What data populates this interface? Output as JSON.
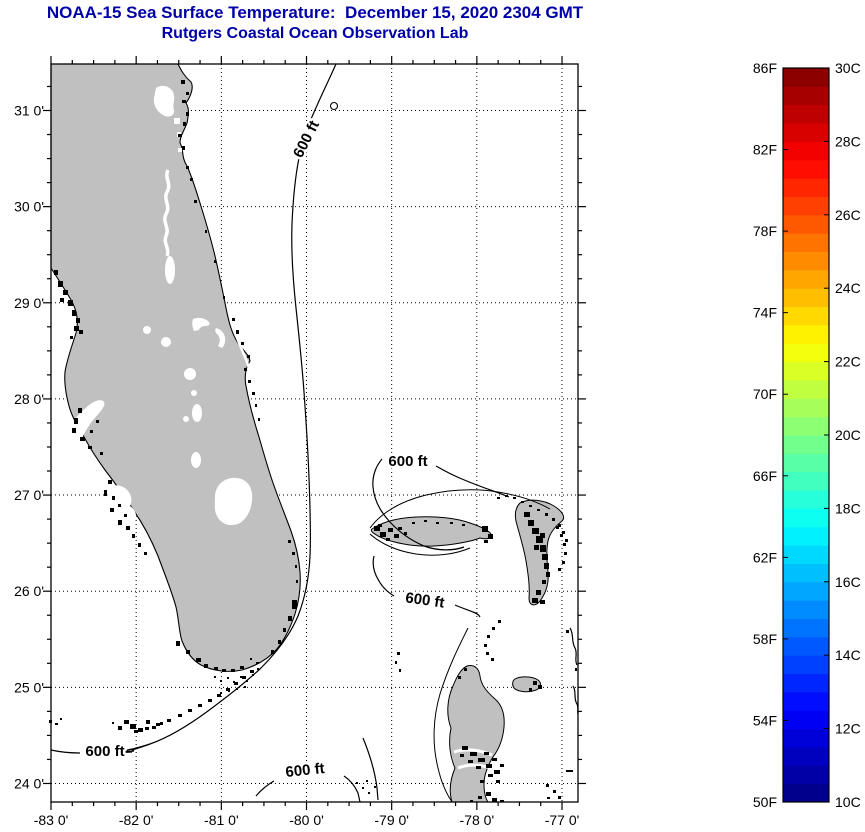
{
  "title": {
    "line1": "NOAA-15 Sea Surface Temperature:  December 15, 2020 2304 GMT",
    "line2": "Rutgers Coastal Ocean Observation Lab"
  },
  "axes": {
    "x_tick_labels": [
      "-83 0'",
      "-82 0'",
      "-81 0'",
      "-80 0'",
      "-79 0'",
      "-78 0'",
      "-77 0'"
    ],
    "y_tick_labels": [
      "31 0'",
      "30 0'",
      "29 0'",
      "28 0'",
      "27 0'",
      "26 0'",
      "25 0'",
      "24 0'"
    ]
  },
  "colorbar": {
    "fahrenheit_labels": [
      "86F",
      "82F",
      "78F",
      "74F",
      "70F",
      "66F",
      "62F",
      "58F",
      "54F",
      "50F"
    ],
    "celsius_labels": [
      "30C",
      "28C",
      "26C",
      "24C",
      "22C",
      "20C",
      "18C",
      "16C",
      "14C",
      "12C",
      "10C"
    ],
    "min_f": 50,
    "max_f": 86,
    "min_c": 10,
    "max_c": 30,
    "colormap": "jet",
    "steps": 40
  },
  "contour_labels": [
    {
      "text": "600 ft"
    },
    {
      "text": "600 ft"
    },
    {
      "text": "600 ft"
    },
    {
      "text": "600 ft"
    },
    {
      "text": "600 ft"
    }
  ],
  "colors": {
    "title_text": "#0000a8",
    "land_fill": "#c0c0c0",
    "coastline": "#000000",
    "background": "#ffffff",
    "grid": "#000000"
  }
}
